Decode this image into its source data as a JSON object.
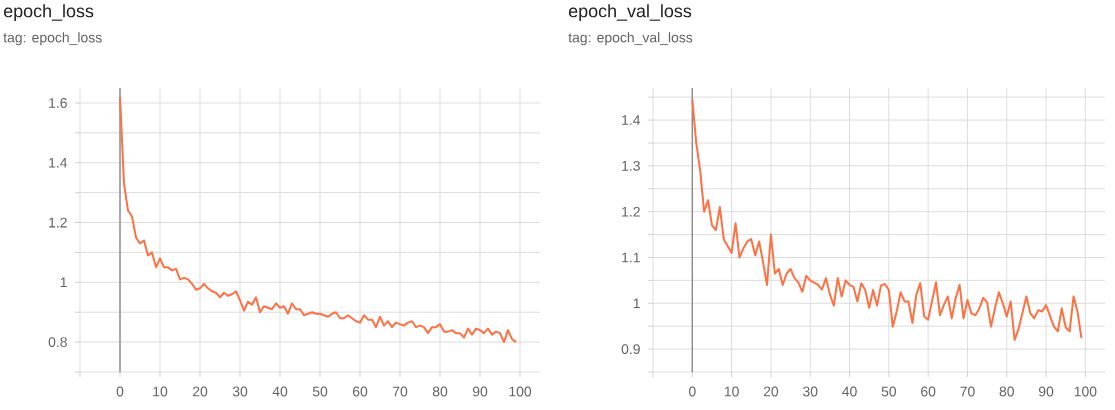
{
  "chart_data": [
    {
      "type": "line",
      "title": "epoch_loss",
      "subtitle": "tag: epoch_loss",
      "grid": true,
      "marker": "none",
      "line_style": "solid",
      "xlim": [
        -10,
        105
      ],
      "ylim": [
        0.7,
        1.65
      ],
      "xticks": [
        {
          "value": -10,
          "label": null
        },
        0,
        10,
        20,
        30,
        40,
        50,
        60,
        70,
        80,
        90,
        100
      ],
      "yticks": [
        {
          "value": 0.7,
          "label": null
        },
        0.8,
        {
          "value": 0.9,
          "label": null
        },
        1,
        {
          "value": 1.1,
          "label": null
        },
        1.2,
        {
          "value": 1.3,
          "label": null
        },
        1.4,
        {
          "value": 1.5,
          "label": null
        },
        1.6
      ],
      "ref_lines": [
        {
          "axis": "x",
          "value": 0,
          "color": "#8a8a8a"
        }
      ],
      "series": [
        {
          "color": "#ff7043",
          "x": [
            0,
            1,
            2,
            3,
            4,
            5,
            6,
            7,
            8,
            9,
            10,
            11,
            12,
            13,
            14,
            15,
            16,
            17,
            18,
            19,
            20,
            21,
            22,
            23,
            24,
            25,
            26,
            27,
            28,
            29,
            30,
            31,
            32,
            33,
            34,
            35,
            36,
            37,
            38,
            39,
            40,
            41,
            42,
            43,
            44,
            45,
            46,
            47,
            48,
            49,
            50,
            51,
            52,
            53,
            54,
            55,
            56,
            57,
            58,
            59,
            60,
            61,
            62,
            63,
            64,
            65,
            66,
            67,
            68,
            69,
            70,
            71,
            72,
            73,
            74,
            75,
            76,
            77,
            78,
            79,
            80,
            81,
            82,
            83,
            84,
            85,
            86,
            87,
            88,
            89,
            90,
            91,
            92,
            93,
            94,
            95,
            96,
            97,
            98,
            99
          ],
          "values": [
            1.62,
            1.33,
            1.24,
            1.22,
            1.15,
            1.13,
            1.14,
            1.09,
            1.1,
            1.05,
            1.08,
            1.05,
            1.05,
            1.04,
            1.045,
            1.01,
            1.015,
            1.01,
            0.995,
            0.975,
            0.98,
            0.995,
            0.98,
            0.97,
            0.965,
            0.95,
            0.965,
            0.955,
            0.96,
            0.97,
            0.94,
            0.905,
            0.935,
            0.925,
            0.95,
            0.9,
            0.92,
            0.915,
            0.91,
            0.93,
            0.915,
            0.92,
            0.895,
            0.93,
            0.91,
            0.91,
            0.89,
            0.895,
            0.9,
            0.895,
            0.895,
            0.89,
            0.885,
            0.895,
            0.9,
            0.88,
            0.88,
            0.89,
            0.88,
            0.87,
            0.865,
            0.89,
            0.875,
            0.875,
            0.85,
            0.885,
            0.855,
            0.87,
            0.85,
            0.865,
            0.86,
            0.855,
            0.865,
            0.87,
            0.85,
            0.855,
            0.85,
            0.83,
            0.85,
            0.85,
            0.86,
            0.835,
            0.835,
            0.84,
            0.83,
            0.83,
            0.815,
            0.845,
            0.825,
            0.845,
            0.84,
            0.83,
            0.845,
            0.825,
            0.835,
            0.83,
            0.8,
            0.84,
            0.81,
            0.8
          ]
        }
      ]
    },
    {
      "type": "line",
      "title": "epoch_val_loss",
      "subtitle": "tag: epoch_val_loss",
      "grid": true,
      "marker": "none",
      "line_style": "solid",
      "xlim": [
        -10,
        105
      ],
      "ylim": [
        0.85,
        1.47
      ],
      "xticks": [
        {
          "value": -10,
          "label": null
        },
        0,
        10,
        20,
        30,
        40,
        50,
        60,
        70,
        80,
        90,
        100
      ],
      "yticks": [
        {
          "value": 0.85,
          "label": null
        },
        0.9,
        {
          "value": 0.95,
          "label": null
        },
        1,
        {
          "value": 1.05,
          "label": null
        },
        1.1,
        {
          "value": 1.15,
          "label": null
        },
        1.2,
        {
          "value": 1.25,
          "label": null
        },
        1.3,
        {
          "value": 1.35,
          "label": null
        },
        1.4,
        {
          "value": 1.45,
          "label": null
        }
      ],
      "ref_lines": [
        {
          "axis": "x",
          "value": 0,
          "color": "#8a8a8a"
        }
      ],
      "series": [
        {
          "color": "#ff7043",
          "x": [
            0,
            1,
            2,
            3,
            4,
            5,
            6,
            7,
            8,
            9,
            10,
            11,
            12,
            13,
            14,
            15,
            16,
            17,
            18,
            19,
            20,
            21,
            22,
            23,
            24,
            25,
            26,
            27,
            28,
            29,
            30,
            31,
            32,
            33,
            34,
            35,
            36,
            37,
            38,
            39,
            40,
            41,
            42,
            43,
            44,
            45,
            46,
            47,
            48,
            49,
            50,
            51,
            52,
            53,
            54,
            55,
            56,
            57,
            58,
            59,
            60,
            62,
            63,
            64,
            65,
            66,
            67,
            68,
            69,
            70,
            71,
            72,
            73,
            74,
            75,
            76,
            77,
            78,
            79,
            80,
            81,
            82,
            83,
            85,
            86,
            87,
            88,
            89,
            90,
            92,
            93,
            94,
            95,
            96,
            97,
            98,
            99
          ],
          "values": [
            1.445,
            1.35,
            1.29,
            1.2,
            1.225,
            1.17,
            1.16,
            1.21,
            1.14,
            1.125,
            1.11,
            1.175,
            1.1,
            1.12,
            1.135,
            1.14,
            1.105,
            1.135,
            1.09,
            1.04,
            1.15,
            1.065,
            1.075,
            1.04,
            1.065,
            1.075,
            1.055,
            1.045,
            1.025,
            1.06,
            1.05,
            1.045,
            1.04,
            1.03,
            1.055,
            1.02,
            0.995,
            1.055,
            1.015,
            1.05,
            1.04,
            1.036,
            1.004,
            1.044,
            1.029,
            0.99,
            1.029,
            0.995,
            1.039,
            1.042,
            1.029,
            0.949,
            0.982,
            1.024,
            1.004,
            1.004,
            0.957,
            1.019,
            1.044,
            0.971,
            0.964,
            1.046,
            0.974,
            0.996,
            1.015,
            0.967,
            1.011,
            1.04,
            0.967,
            1.007,
            0.978,
            0.974,
            0.988,
            1.012,
            1.002,
            0.949,
            0.989,
            1.024,
            1.0,
            0.971,
            1.004,
            0.92,
            0.944,
            1.015,
            0.978,
            0.967,
            0.985,
            0.982,
            0.996,
            0.949,
            0.939,
            0.989,
            0.947,
            0.939,
            1.015,
            0.982,
            0.924
          ]
        }
      ]
    }
  ]
}
